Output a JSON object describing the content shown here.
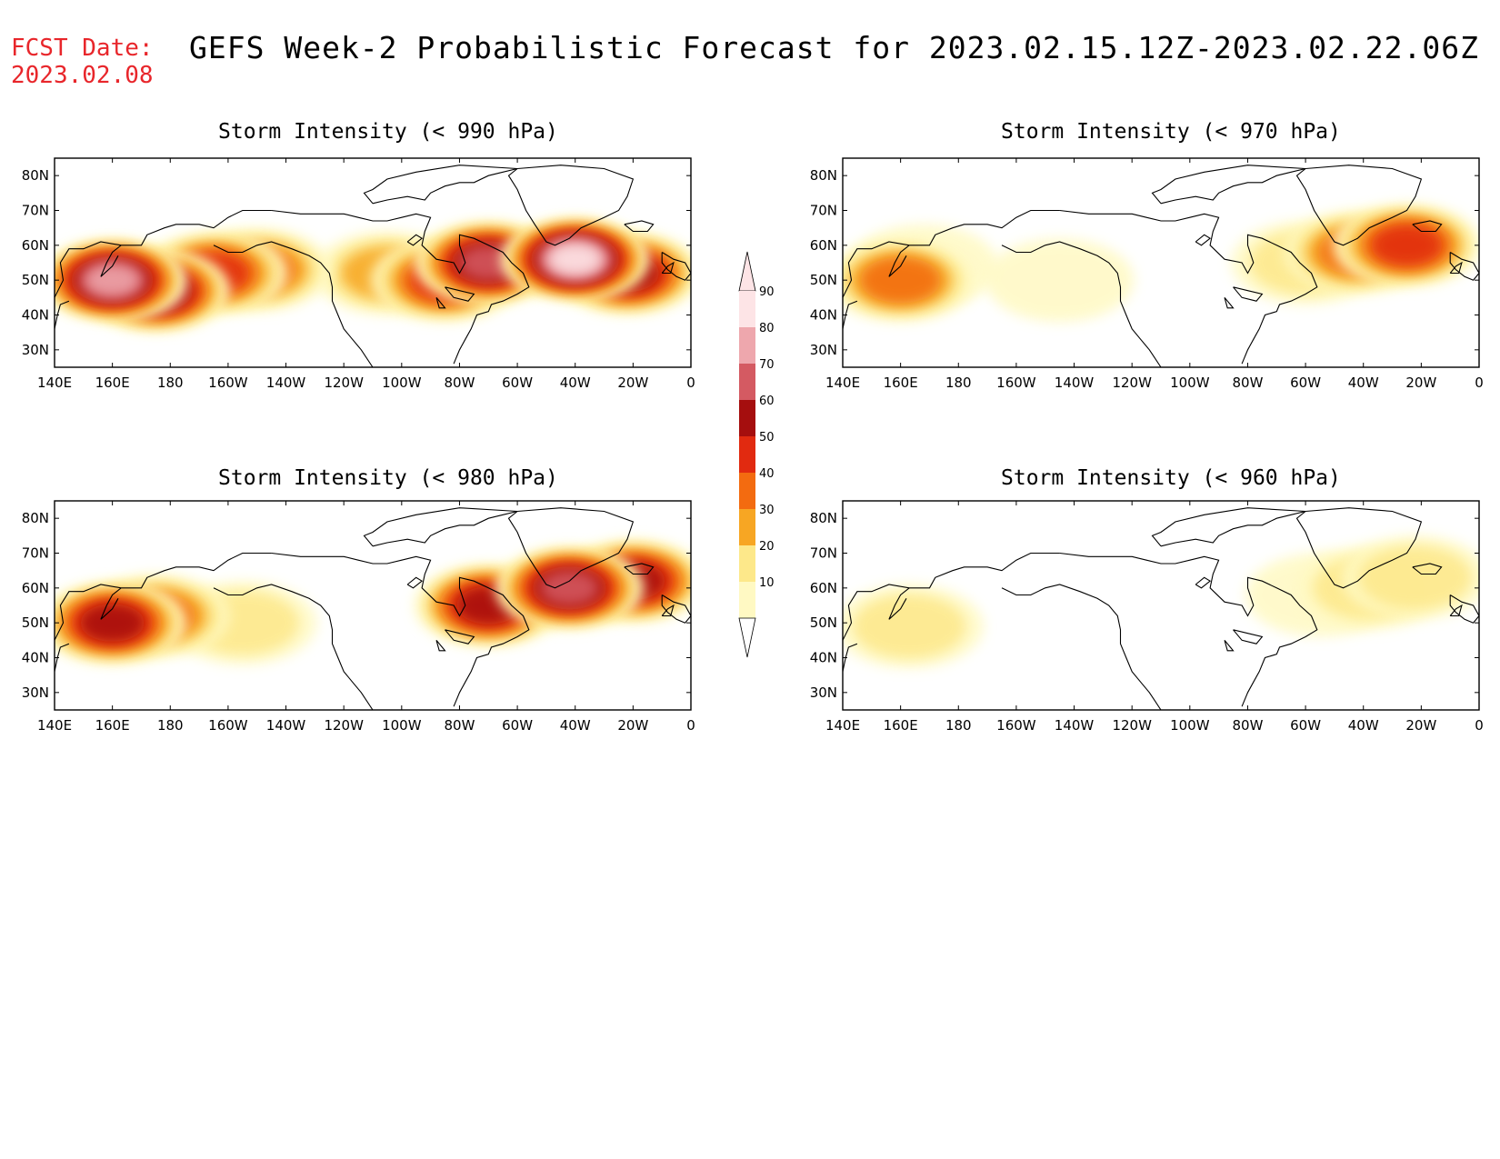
{
  "fcst_date": {
    "label": "FCST Date:",
    "value": "2023.02.08"
  },
  "title": "GEFS Week-2 Probabilistic Forecast for 2023.02.15.12Z-2023.02.22.06Z",
  "colors": {
    "ramp": [
      "#fff9c3",
      "#fde88a",
      "#f7a623",
      "#f36b10",
      "#e12a10",
      "#a50e0e",
      "#d45a62",
      "#eea7ad",
      "#fde4e6"
    ],
    "title_red": "#e8262b"
  },
  "colorbar": {
    "levels": [
      "10",
      "20",
      "30",
      "40",
      "50",
      "60",
      "70",
      "80",
      "90"
    ]
  },
  "axes": {
    "lon_labels": [
      "140E",
      "160E",
      "180",
      "160W",
      "140W",
      "120W",
      "100W",
      "80W",
      "60W",
      "40W",
      "20W",
      "0"
    ],
    "lat_labels": [
      "80N",
      "70N",
      "60N",
      "50N",
      "40N",
      "30N"
    ]
  },
  "panels": [
    {
      "title": "Storm Intensity (< 990 hPa)",
      "regions": [
        {
          "lon": 160,
          "lat": 50,
          "prob": 80
        },
        {
          "lon": 175,
          "lat": 47,
          "prob": 70
        },
        {
          "lon": 195,
          "lat": 52,
          "prob": 50
        },
        {
          "lon": 210,
          "lat": 53,
          "prob": 40
        },
        {
          "lon": 255,
          "lat": 52,
          "prob": 30
        },
        {
          "lon": 275,
          "lat": 50,
          "prob": 50
        },
        {
          "lon": 290,
          "lat": 55,
          "prob": 70
        },
        {
          "lon": 320,
          "lat": 56,
          "prob": 90
        },
        {
          "lon": 338,
          "lat": 52,
          "prob": 60
        }
      ]
    },
    {
      "title": "Storm Intensity (< 970 hPa)",
      "regions": [
        {
          "lon": 160,
          "lat": 50,
          "prob": 40
        },
        {
          "lon": 168,
          "lat": 54,
          "prob": 10
        },
        {
          "lon": 215,
          "lat": 50,
          "prob": 10
        },
        {
          "lon": 300,
          "lat": 55,
          "prob": 20
        },
        {
          "lon": 318,
          "lat": 58,
          "prob": 40
        },
        {
          "lon": 335,
          "lat": 60,
          "prob": 50
        }
      ]
    },
    {
      "title": "Storm Intensity (< 980 hPa)",
      "regions": [
        {
          "lon": 160,
          "lat": 50,
          "prob": 60
        },
        {
          "lon": 175,
          "lat": 52,
          "prob": 40
        },
        {
          "lon": 205,
          "lat": 50,
          "prob": 20
        },
        {
          "lon": 290,
          "lat": 55,
          "prob": 60
        },
        {
          "lon": 318,
          "lat": 60,
          "prob": 70
        },
        {
          "lon": 340,
          "lat": 62,
          "prob": 60
        }
      ]
    },
    {
      "title": "Storm Intensity (< 960 hPa)",
      "regions": [
        {
          "lon": 163,
          "lat": 49,
          "prob": 20
        },
        {
          "lon": 305,
          "lat": 58,
          "prob": 10
        },
        {
          "lon": 322,
          "lat": 60,
          "prob": 20
        },
        {
          "lon": 338,
          "lat": 63,
          "prob": 20
        }
      ]
    }
  ]
}
